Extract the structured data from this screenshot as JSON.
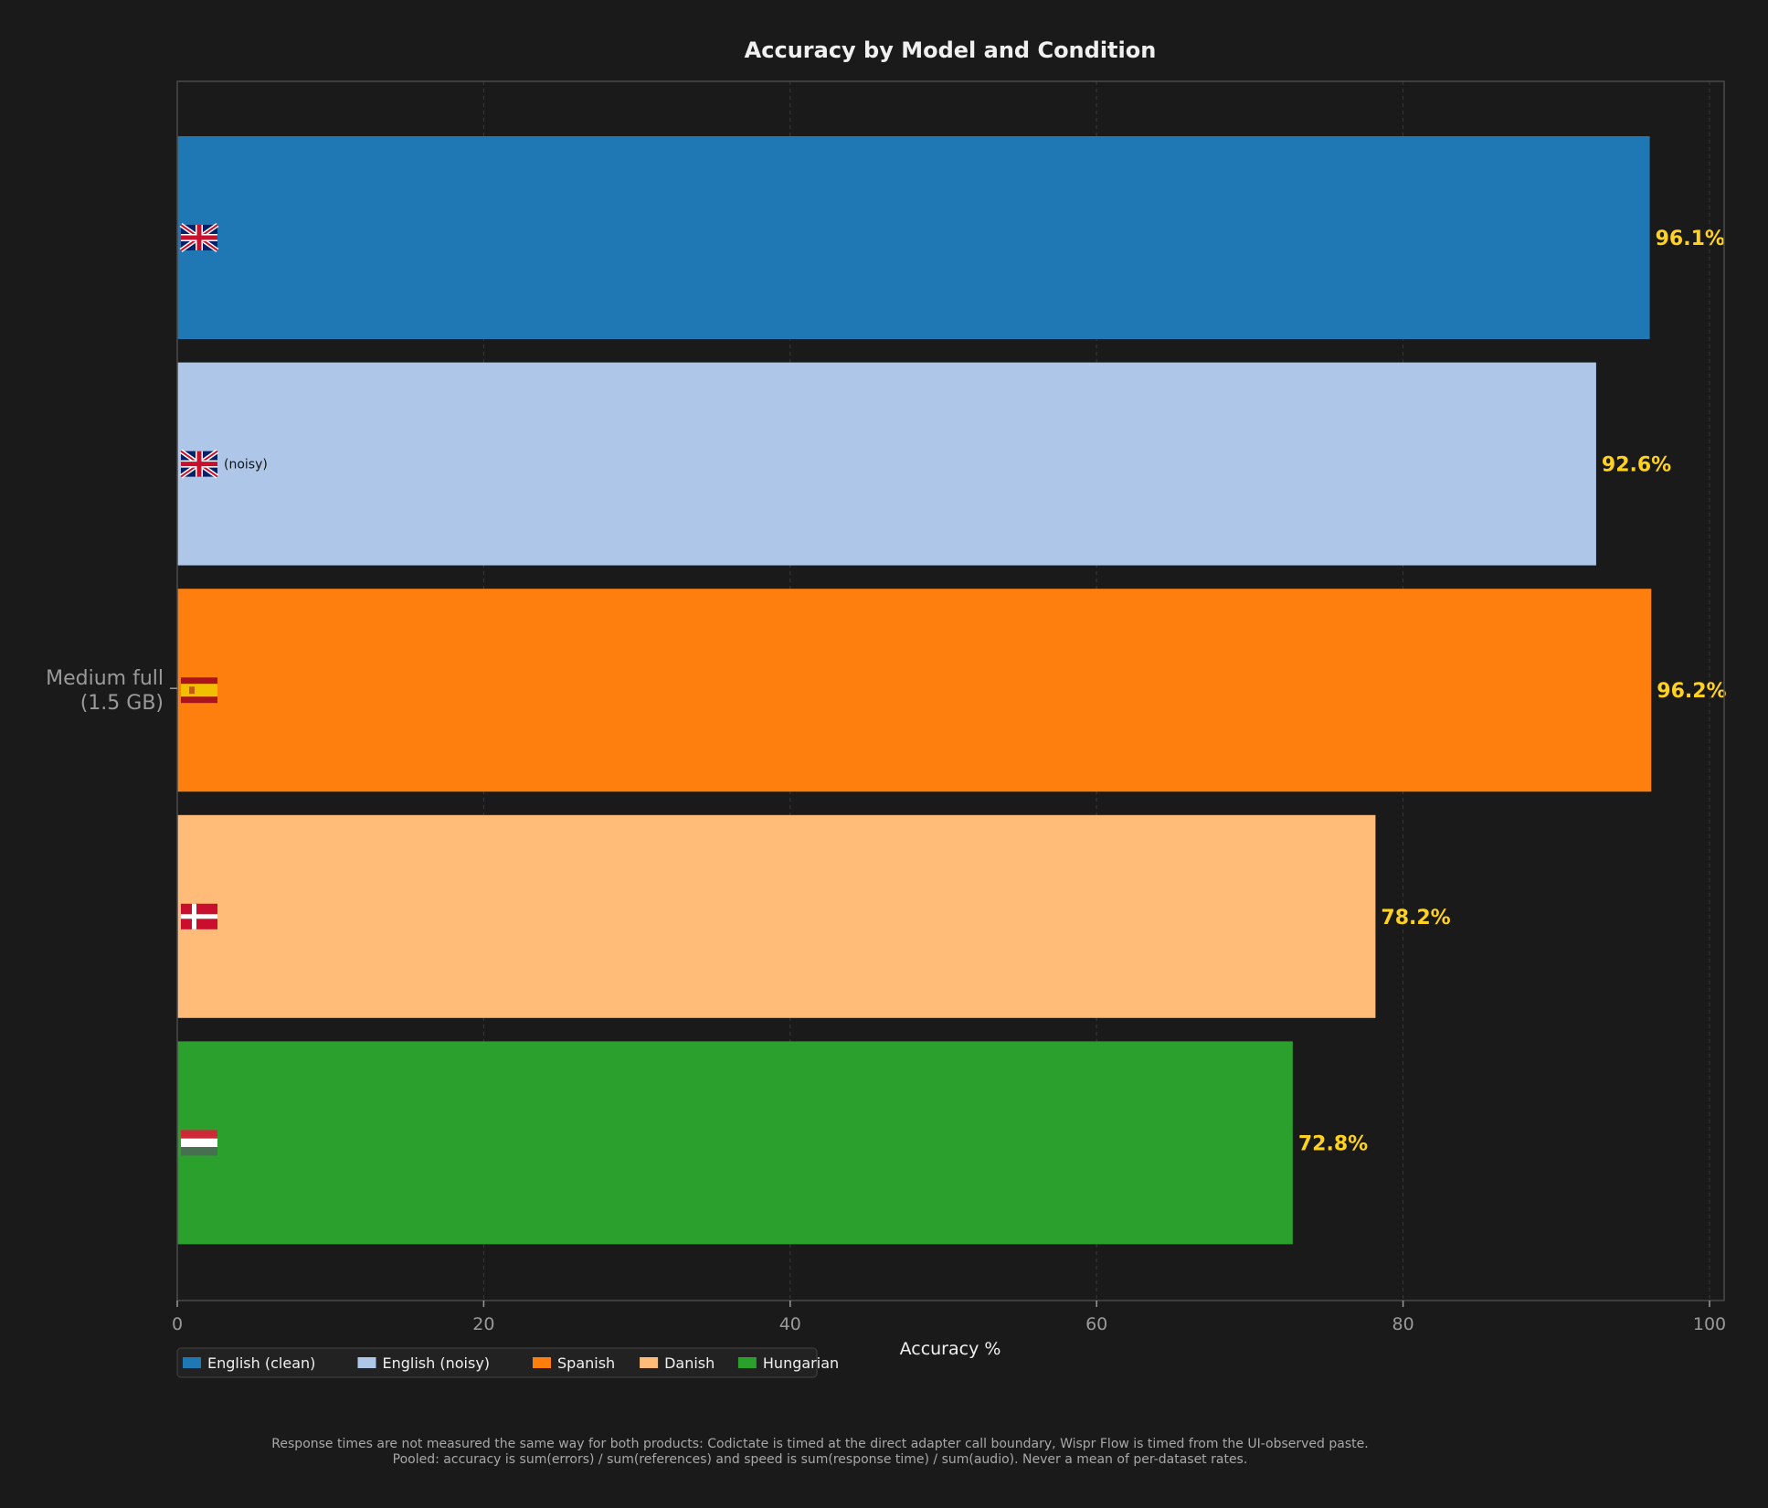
{
  "chart_data": {
    "type": "bar",
    "orientation": "horizontal",
    "title": "Accuracy by Model and Condition",
    "xlabel": "Accuracy %",
    "ylabel": "",
    "xlim": [
      0,
      101
    ],
    "xticks": [
      "0",
      "20",
      "40",
      "60",
      "80",
      "100"
    ],
    "grid": "vertical dashed",
    "group_label": "Medium full\n(1.5 GB)",
    "categories": [
      "English (clean)",
      "English (noisy)",
      "Spanish",
      "Danish",
      "Hungarian"
    ],
    "series": [
      {
        "name": "English (clean)",
        "value": 96.1,
        "label": "96.1%",
        "color": "#1f77b4",
        "flag": "uk-flag-icon",
        "inner_text": ""
      },
      {
        "name": "English (noisy)",
        "value": 92.6,
        "label": "92.6%",
        "color": "#aec7e8",
        "flag": "uk-flag-icon",
        "inner_text": "(noisy)"
      },
      {
        "name": "Spanish",
        "value": 96.2,
        "label": "96.2%",
        "color": "#ff7f0e",
        "flag": "spain-flag-icon",
        "inner_text": ""
      },
      {
        "name": "Danish",
        "value": 78.2,
        "label": "78.2%",
        "color": "#ffbb78",
        "flag": "denmark-flag-icon",
        "inner_text": ""
      },
      {
        "name": "Hungarian",
        "value": 72.8,
        "label": "72.8%",
        "color": "#2ca02c",
        "flag": "hungary-flag-icon",
        "inner_text": ""
      }
    ],
    "legend": {
      "position": "bottom-left",
      "entries": [
        "English (clean)",
        "English (noisy)",
        "Spanish",
        "Danish",
        "Hungarian"
      ]
    },
    "colors": {
      "background": "#1a1a1a",
      "value_label": "#ffd21f",
      "tick": "#9a9a9a",
      "title": "#f0f0f0"
    }
  },
  "footnotes": [
    "Response times are not measured the same way for both products: Codictate is timed at the direct adapter call boundary, Wispr Flow is timed from the UI-observed paste.",
    "Pooled: accuracy is sum(errors) / sum(references) and speed is sum(response time) / sum(audio). Never a mean of per-dataset rates."
  ]
}
